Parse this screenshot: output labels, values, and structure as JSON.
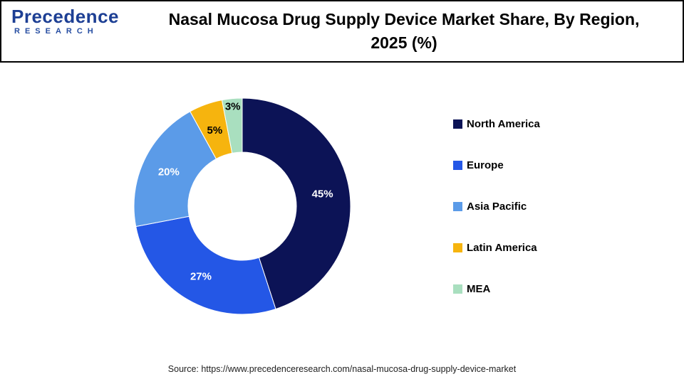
{
  "header": {
    "logo_brand": "Precedence",
    "logo_subtitle": "RESEARCH",
    "title_line1": "Nasal Mucosa Drug Supply Device Market Share, By Region,",
    "title_line2": "2025 (%)"
  },
  "chart_data": {
    "type": "pie",
    "subtype": "donut",
    "title": "Nasal Mucosa Drug Supply Device Market Share, By Region, 2025 (%)",
    "unit": "%",
    "start_angle_deg": 0,
    "direction": "clockwise",
    "legend_position": "right",
    "slices": [
      {
        "label": "North America",
        "value": 45,
        "display": "45%",
        "color": "#0C1356",
        "label_color": "#FFFFFF"
      },
      {
        "label": "Europe",
        "value": 27,
        "display": "27%",
        "color": "#2457E6",
        "label_color": "#FFFFFF"
      },
      {
        "label": "Asia Pacific",
        "value": 20,
        "display": "20%",
        "color": "#5B9BE8",
        "label_color": "#FFFFFF"
      },
      {
        "label": "Latin America",
        "value": 5,
        "display": "5%",
        "color": "#F6B40E",
        "label_color": "#000000"
      },
      {
        "label": "MEA",
        "value": 3,
        "display": "3%",
        "color": "#A9DFBF",
        "label_color": "#000000"
      }
    ]
  },
  "footer": {
    "source": "Source: https://www.precedenceresearch.com/nasal-mucosa-drug-supply-device-market"
  }
}
